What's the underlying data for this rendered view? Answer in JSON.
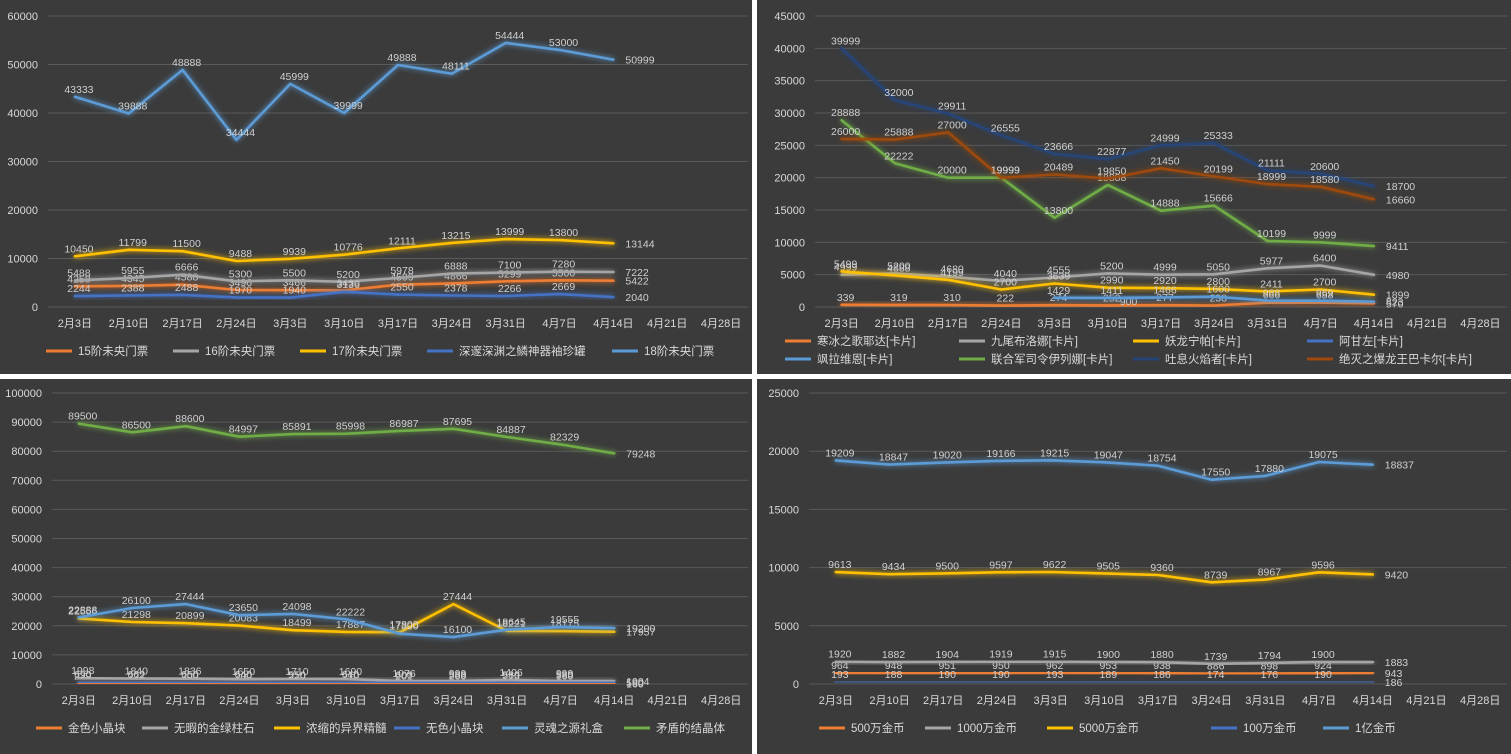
{
  "chart_data": [
    {
      "type": "line",
      "title": "",
      "categories": [
        "2月3日",
        "2月10日",
        "2月17日",
        "2月24日",
        "3月3日",
        "3月10日",
        "3月17日",
        "3月24日",
        "3月31日",
        "4月7日",
        "4月14日",
        "4月21日",
        "4月28日"
      ],
      "ylim": [
        0,
        60000
      ],
      "yticks": [
        0,
        10000,
        20000,
        30000,
        40000,
        50000,
        60000
      ],
      "legend_position": "bottom",
      "grid": true,
      "series": [
        {
          "name": "15阶未央门票",
          "color": "#ed7d31",
          "values": [
            4258,
            4345,
            4588,
            3496,
            3466,
            3430,
            4599,
            4866,
            5299,
            5500,
            5422,
            null,
            null
          ]
        },
        {
          "name": "16阶未央门票",
          "color": "#a5a5a5",
          "values": [
            5488,
            5955,
            6666,
            5300,
            5500,
            5200,
            5978,
            6888,
            7100,
            7280,
            7222,
            null,
            null
          ]
        },
        {
          "name": "17阶未央门票",
          "color": "#ffc000",
          "values": [
            10450,
            11799,
            11500,
            9488,
            9939,
            10776,
            12111,
            13215,
            13999,
            13800,
            13144,
            null,
            null
          ]
        },
        {
          "name": "深邃深渊之鳞神器袖珍罐",
          "color": "#4472c4",
          "values": [
            2244,
            2388,
            2488,
            1970,
            1940,
            3136,
            2550,
            2378,
            2266,
            2669,
            2040,
            null,
            null
          ]
        },
        {
          "name": "18阶未央门票",
          "color": "#5b9bd5",
          "values": [
            43333,
            39888,
            48888,
            34444,
            45999,
            39999,
            49888,
            48111,
            54444,
            53000,
            50999,
            null,
            null
          ]
        }
      ]
    },
    {
      "type": "line",
      "title": "",
      "categories": [
        "2月3日",
        "2月10日",
        "2月17日",
        "2月24日",
        "3月3日",
        "3月10日",
        "3月17日",
        "3月24日",
        "3月31日",
        "4月7日",
        "4月14日",
        "4月21日",
        "4月28日"
      ],
      "ylim": [
        0,
        45000
      ],
      "yticks": [
        0,
        5000,
        10000,
        15000,
        20000,
        25000,
        30000,
        35000,
        40000,
        45000
      ],
      "legend_position": "bottom",
      "grid": true,
      "series": [
        {
          "name": "寒冰之歌耶达[卡片]",
          "color": "#ed7d31",
          "values": [
            339,
            319,
            310,
            222,
            274,
            252,
            277,
            238,
            666,
            688,
            570,
            null,
            null
          ]
        },
        {
          "name": "九尾布洛娜[卡片]",
          "color": "#a5a5a5",
          "values": [
            4999,
            5200,
            4680,
            4040,
            4555,
            5200,
            4999,
            5050,
            5977,
            6400,
            4980,
            null,
            null
          ]
        },
        {
          "name": "妖龙宁帕[卡片]",
          "color": "#ffc000",
          "values": [
            5499,
            4888,
            4199,
            2700,
            3639,
            2990,
            2920,
            2800,
            2411,
            2700,
            1899,
            null,
            null
          ]
        },
        {
          "name": "阿甘左[卡片]",
          "color": "#4472c4",
          "values": [
            null,
            null,
            null,
            null,
            null,
            900,
            null,
            null,
            null,
            null,
            null,
            null,
            null
          ]
        },
        {
          "name": "飒拉维恩[卡片]",
          "color": "#5b9bd5",
          "values": [
            null,
            null,
            null,
            null,
            1429,
            1411,
            1466,
            1600,
            988,
            969,
            823,
            null,
            null
          ]
        },
        {
          "name": "联合军司令伊列娜[卡片]",
          "color": "#70ad47",
          "values": [
            28888,
            22222,
            20000,
            19999,
            13800,
            18888,
            14888,
            15666,
            10199,
            9999,
            9411,
            null,
            null
          ]
        },
        {
          "name": "吐息火焰者[卡片]",
          "color": "#264478",
          "values": [
            39999,
            32000,
            29911,
            26555,
            23666,
            22877,
            24999,
            25333,
            21111,
            20600,
            18700,
            null,
            null
          ]
        },
        {
          "name": "绝灭之爆龙王巴卡尔[卡片]",
          "color": "#9e480e",
          "values": [
            26000,
            25888,
            27000,
            19999,
            20489,
            19850,
            21450,
            20199,
            18999,
            18580,
            16660,
            null,
            null
          ]
        }
      ]
    },
    {
      "type": "line",
      "title": "",
      "categories": [
        "2月3日",
        "2月10日",
        "2月17日",
        "2月24日",
        "3月3日",
        "3月10日",
        "3月17日",
        "3月24日",
        "3月31日",
        "4月7日",
        "4月14日",
        "4月21日",
        "4月28日"
      ],
      "ylim": [
        0,
        100000
      ],
      "yticks": [
        0,
        10000,
        20000,
        30000,
        40000,
        50000,
        60000,
        70000,
        80000,
        90000,
        100000
      ],
      "legend_position": "bottom",
      "grid": true,
      "series": [
        {
          "name": "金色小晶块",
          "color": "#ed7d31",
          "values": [
            239,
            222,
            200,
            200,
            210,
            210,
            201,
            200,
            213,
            160,
            160,
            null,
            null
          ]
        },
        {
          "name": "无暇的金绿柱石",
          "color": "#a5a5a5",
          "values": [
            1998,
            1840,
            1836,
            1650,
            1710,
            1690,
            1076,
            999,
            1406,
            999,
            1004,
            null,
            null
          ]
        },
        {
          "name": "浓缩的异界精髓",
          "color": "#ffc000",
          "values": [
            22556,
            21298,
            20899,
            20083,
            18499,
            17887,
            17800,
            27444,
            18221,
            18175,
            17957,
            null,
            null
          ]
        },
        {
          "name": "无色小晶块",
          "color": "#4472c4",
          "values": [
            690,
            662,
            650,
            640,
            550,
            640,
            600,
            588,
            580,
            580,
            580,
            null,
            null
          ]
        },
        {
          "name": "灵魂之源礼盒",
          "color": "#5b9bd5",
          "values": [
            22888,
            26100,
            27444,
            23650,
            24098,
            22222,
            17300,
            16100,
            18645,
            19555,
            19200,
            null,
            null
          ]
        },
        {
          "name": "矛盾的结晶体",
          "color": "#70ad47",
          "values": [
            89500,
            86500,
            88600,
            84997,
            85891,
            85998,
            86987,
            87695,
            84887,
            82329,
            79248,
            null,
            null
          ]
        }
      ]
    },
    {
      "type": "line",
      "title": "",
      "categories": [
        "2月3日",
        "2月10日",
        "2月17日",
        "2月24日",
        "3月3日",
        "3月10日",
        "3月17日",
        "3月24日",
        "3月31日",
        "4月7日",
        "4月14日",
        "4月21日",
        "4月28日"
      ],
      "ylim": [
        0,
        25000
      ],
      "yticks": [
        0,
        5000,
        10000,
        15000,
        20000,
        25000
      ],
      "legend_position": "bottom",
      "grid": true,
      "series": [
        {
          "name": "500万金币",
          "color": "#ed7d31",
          "values": [
            964,
            948,
            951,
            950,
            962,
            953,
            938,
            886,
            898,
            924,
            943,
            null,
            null
          ]
        },
        {
          "name": "1000万金币",
          "color": "#a5a5a5",
          "values": [
            1920,
            1882,
            1904,
            1919,
            1915,
            1900,
            1880,
            1739,
            1794,
            1900,
            1883,
            null,
            null
          ]
        },
        {
          "name": "5000万金币",
          "color": "#ffc000",
          "values": [
            9613,
            9434,
            9500,
            9597,
            9622,
            9505,
            9360,
            8739,
            8967,
            9596,
            9420,
            null,
            null
          ]
        },
        {
          "name": "100万金币",
          "color": "#4472c4",
          "values": [
            193,
            188,
            190,
            190,
            193,
            189,
            186,
            174,
            176,
            190,
            186,
            null,
            null
          ]
        },
        {
          "name": "1亿金币",
          "color": "#5b9bd5",
          "values": [
            19209,
            18847,
            19020,
            19166,
            19215,
            19047,
            18754,
            17550,
            17880,
            19075,
            18837,
            null,
            null
          ]
        }
      ]
    }
  ]
}
